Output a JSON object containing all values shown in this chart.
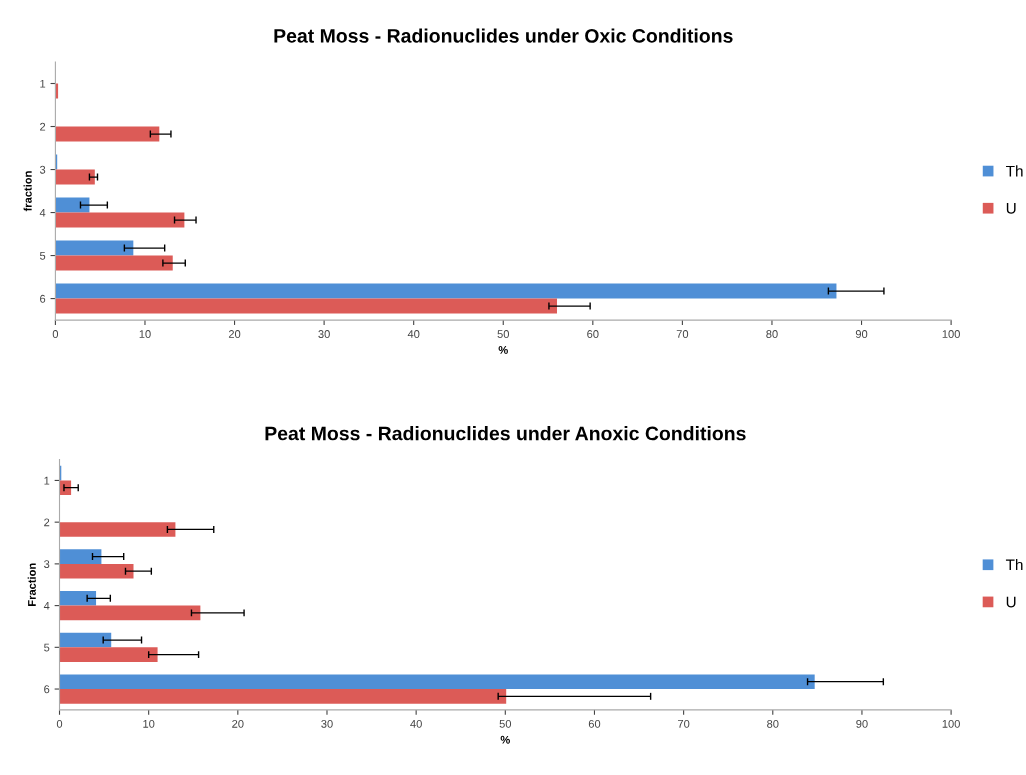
{
  "chart_data": [
    {
      "type": "bar",
      "orientation": "horizontal",
      "title": "Peat Moss - Radionuclides under Oxic Conditions",
      "xlabel": "%",
      "ylabel": "fraction",
      "categories": [
        "1",
        "2",
        "3",
        "4",
        "5",
        "6"
      ],
      "xlim": [
        0,
        100
      ],
      "xticks": [
        0,
        10,
        20,
        30,
        40,
        50,
        60,
        70,
        80,
        90,
        100
      ],
      "grid": false,
      "legend": "right",
      "series": [
        {
          "name": "Th",
          "color": "#4f8fd6",
          "values": [
            null,
            null,
            0.2,
            3.8,
            8.7,
            87.2
          ],
          "errors": [
            null,
            null,
            null,
            [
              2.8,
              5.8
            ],
            [
              7.7,
              12.2
            ],
            [
              86.3,
              92.5
            ]
          ]
        },
        {
          "name": "U",
          "color": "#dc5b57",
          "values": [
            0.3,
            11.6,
            4.4,
            14.4,
            13.1,
            56.0
          ],
          "errors": [
            null,
            [
              10.6,
              12.9
            ],
            [
              3.8,
              4.7
            ],
            [
              13.3,
              15.7
            ],
            [
              12.0,
              14.5
            ],
            [
              55.1,
              59.7
            ]
          ]
        }
      ]
    },
    {
      "type": "bar",
      "orientation": "horizontal",
      "title": "Peat Moss - Radionuclides under Anoxic Conditions",
      "xlabel": "%",
      "ylabel": "Fraction",
      "categories": [
        "1",
        "2",
        "3",
        "4",
        "5",
        "6"
      ],
      "xlim": [
        0,
        100
      ],
      "xticks": [
        0,
        10,
        20,
        30,
        40,
        50,
        60,
        70,
        80,
        90,
        100
      ],
      "grid": false,
      "legend": "right",
      "series": [
        {
          "name": "Th",
          "color": "#4f8fd6",
          "values": [
            0.2,
            null,
            4.7,
            4.1,
            5.8,
            84.7
          ],
          "errors": [
            null,
            null,
            [
              3.7,
              7.2
            ],
            [
              3.1,
              5.7
            ],
            [
              4.9,
              9.2
            ],
            [
              83.9,
              92.4
            ]
          ]
        },
        {
          "name": "U",
          "color": "#dc5b57",
          "values": [
            1.3,
            13.0,
            8.3,
            15.8,
            11.0,
            50.1
          ],
          "errors": [
            [
              0.5,
              2.1
            ],
            [
              12.1,
              17.3
            ],
            [
              7.4,
              10.3
            ],
            [
              14.8,
              20.7
            ],
            [
              10.0,
              15.6
            ],
            [
              49.2,
              66.3
            ]
          ]
        }
      ]
    }
  ]
}
